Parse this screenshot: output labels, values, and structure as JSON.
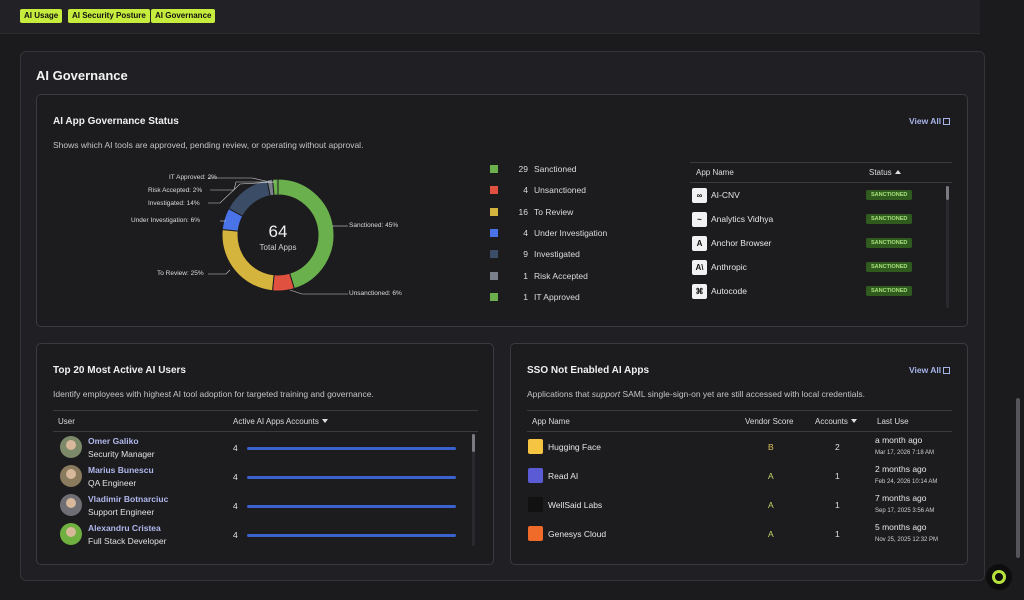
{
  "tabs": [
    "AI Usage",
    "AI Security Posture",
    "AI Governance"
  ],
  "section_title": "AI Governance",
  "governance": {
    "title": "AI App Governance Status",
    "description": "Shows which AI tools are approved, pending review, or operating without approval.",
    "view_all": "View All",
    "total": "64",
    "total_label": "Total Apps",
    "donut_labels": [
      "IT Approved: 2%",
      "Risk Accepted: 2%",
      "Investigated: 14%",
      "Under Investigation: 6%",
      "To Review: 25%",
      "Sanctioned: 45%",
      "Unsanctioned: 6%"
    ],
    "chart_data": {
      "type": "pie",
      "categories": [
        "Sanctioned",
        "Unsanctioned",
        "To Review",
        "Under Investigation",
        "Investigated",
        "Risk Accepted",
        "IT Approved"
      ],
      "values": [
        29,
        4,
        16,
        4,
        9,
        1,
        1
      ],
      "colors": [
        "#6ab04c",
        "#e0513f",
        "#d4b43c",
        "#4a73e8",
        "#3a4c66",
        "#7b7f8c",
        "#6ab04c"
      ]
    },
    "legend": [
      {
        "count": "29",
        "label": "Sanctioned",
        "color": "#6ab04c"
      },
      {
        "count": "4",
        "label": "Unsanctioned",
        "color": "#e0513f"
      },
      {
        "count": "16",
        "label": "To Review",
        "color": "#d4b43c"
      },
      {
        "count": "4",
        "label": "Under Investigation",
        "color": "#4a73e8"
      },
      {
        "count": "9",
        "label": "Investigated",
        "color": "#3a4c66"
      },
      {
        "count": "1",
        "label": "Risk Accepted",
        "color": "#7b7f8c"
      },
      {
        "count": "1",
        "label": "IT Approved",
        "color": "#6ab04c"
      }
    ],
    "table": {
      "col_app": "App Name",
      "col_status": "Status",
      "rows": [
        {
          "name": "AI-CNV",
          "status": "SANCTIONED"
        },
        {
          "name": "Analytics Vidhya",
          "status": "SANCTIONED"
        },
        {
          "name": "Anchor Browser",
          "status": "SANCTIONED"
        },
        {
          "name": "Anthropic",
          "status": "SANCTIONED"
        },
        {
          "name": "Autocode",
          "status": "SANCTIONED"
        }
      ]
    }
  },
  "users": {
    "title": "Top 20 Most Active AI Users",
    "description": "Identify employees with highest AI tool adoption for targeted training and governance.",
    "col_user": "User",
    "col_accounts": "Active AI Apps Accounts",
    "rows": [
      {
        "name": "Omer Galiko",
        "role": "Security Manager",
        "count": "4"
      },
      {
        "name": "Marius Bunescu",
        "role": "QA Engineer",
        "count": "4"
      },
      {
        "name": "Vladimir Botnarciuc",
        "role": "Support Engineer",
        "count": "4"
      },
      {
        "name": "Alexandru Cristea",
        "role": "Full Stack Developer",
        "count": "4"
      }
    ]
  },
  "sso": {
    "title": "SSO Not Enabled AI Apps",
    "description_pre": "Applications that ",
    "description_em": "support",
    "description_post": " SAML single-sign-on yet are still accessed with local credentials.",
    "view_all": "View All",
    "col_app": "App Name",
    "col_score": "Vendor Score",
    "col_accounts": "Accounts",
    "col_last": "Last Use",
    "rows": [
      {
        "name": "Hugging Face",
        "score": "B",
        "accounts": "2",
        "last": "a month ago",
        "date": "Mar 17, 2026 7:18 AM",
        "logo_color": "#f5c542"
      },
      {
        "name": "Read AI",
        "score": "A",
        "accounts": "1",
        "last": "2 months ago",
        "date": "Feb 24, 2026 10:14 AM",
        "logo_color": "#5b5bd6"
      },
      {
        "name": "WellSaid Labs",
        "score": "A",
        "accounts": "1",
        "last": "7 months ago",
        "date": "Sep 17, 2025 3:56 AM",
        "logo_color": "#111111"
      },
      {
        "name": "Genesys Cloud",
        "score": "A",
        "accounts": "1",
        "last": "5 months ago",
        "date": "Nov 25, 2025 12:32 PM",
        "logo_color": "#f06a2a"
      }
    ]
  }
}
